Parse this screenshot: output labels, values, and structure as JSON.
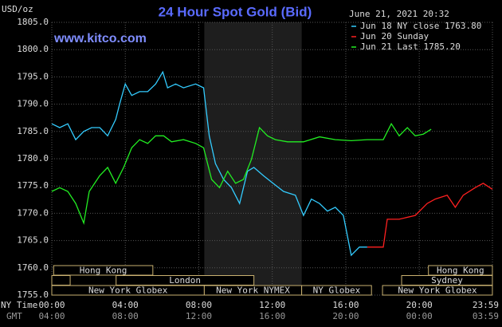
{
  "chart_data": {
    "type": "line",
    "title": "24 Hour Spot Gold (Bid)",
    "subtitle": "www.kitco.com",
    "timestamp": "June 21, 2021 20:32",
    "ylabel": "USD/oz",
    "xlabel": "NY Time",
    "x2label": "GMT",
    "xlim": [
      0,
      23.983
    ],
    "ylim": [
      1755,
      1805
    ],
    "yticks": [
      {
        "value": 1755,
        "label": "1755.0"
      },
      {
        "value": 1760,
        "label": "1760.0"
      },
      {
        "value": 1765,
        "label": "1765.0"
      },
      {
        "value": 1770,
        "label": "1770.0"
      },
      {
        "value": 1775,
        "label": "1775.0"
      },
      {
        "value": 1780,
        "label": "1780.0"
      },
      {
        "value": 1785,
        "label": "1785.0"
      },
      {
        "value": 1790,
        "label": "1790.0"
      },
      {
        "value": 1795,
        "label": "1795.0"
      },
      {
        "value": 1800,
        "label": "1800.0"
      },
      {
        "value": 1805,
        "label": "1805.0"
      }
    ],
    "xticks": [
      {
        "value": 0,
        "label": "00:00"
      },
      {
        "value": 4,
        "label": "04:00"
      },
      {
        "value": 8,
        "label": "08:00"
      },
      {
        "value": 12,
        "label": "12:00"
      },
      {
        "value": 16,
        "label": "16:00"
      },
      {
        "value": 20,
        "label": "20:00"
      },
      {
        "value": 23.983,
        "label": "23:59"
      }
    ],
    "x2ticks": [
      {
        "value": 0,
        "label": "04:00"
      },
      {
        "value": 4,
        "label": "08:00"
      },
      {
        "value": 8,
        "label": "12:00"
      },
      {
        "value": 12,
        "label": "16:00"
      },
      {
        "value": 16,
        "label": "20:00"
      },
      {
        "value": 20,
        "label": "00:00"
      },
      {
        "value": 23.983,
        "label": "03:59"
      }
    ],
    "grid": true,
    "sessions": [
      "Hong Kong",
      "London",
      "New York Globex",
      "New York NYMEX",
      "NY Globex",
      "Hong Kong",
      "Sydney",
      "New York Globex"
    ],
    "series": [
      {
        "name": "Jun 18 NY close 1763.80",
        "color": "#33ccff",
        "x": [
          0,
          0.43,
          0.87,
          1.3,
          1.74,
          2.17,
          2.61,
          3.04,
          3.48,
          3.7,
          4,
          4.35,
          4.78,
          5.22,
          5.65,
          6.04,
          6.3,
          6.74,
          7.17,
          7.83,
          8.26,
          8.57,
          8.91,
          9.35,
          9.78,
          10.22,
          10.65,
          11,
          11.52,
          12.04,
          12.61,
          13.26,
          13.7,
          14.13,
          14.57,
          15,
          15.43,
          15.87,
          16.3,
          16.74,
          17.17
        ],
        "values": [
          1786.4,
          1785.7,
          1786.4,
          1783.5,
          1785,
          1785.7,
          1785.7,
          1784.2,
          1787.2,
          1790.1,
          1793.7,
          1791.6,
          1792.3,
          1792.3,
          1793.7,
          1795.9,
          1793,
          1793.7,
          1793,
          1793.7,
          1793,
          1784.2,
          1779.1,
          1776.2,
          1774.7,
          1771.8,
          1777.7,
          1778.4,
          1776.9,
          1775.5,
          1774,
          1773.3,
          1769.6,
          1772.6,
          1771.8,
          1770.4,
          1771.1,
          1769.6,
          1762.3,
          1763.8,
          1763.8
        ]
      },
      {
        "name": "Jun 20 Sunday",
        "color": "#ff2020",
        "x": [
          17.17,
          18.04,
          18.26,
          18.91,
          19.78,
          20.43,
          20.87,
          21.52,
          21.96,
          22.39,
          23.04,
          23.48,
          23.98
        ],
        "values": [
          1763.8,
          1763.8,
          1768.9,
          1768.9,
          1769.6,
          1771.8,
          1772.6,
          1773.3,
          1771.1,
          1773.3,
          1774.7,
          1775.5,
          1774.4
        ]
      },
      {
        "name": "Jun 21 Last 1785.20",
        "color": "#22ee22",
        "x": [
          0,
          0.43,
          0.87,
          1.3,
          1.74,
          2.04,
          2.61,
          3.04,
          3.48,
          3.91,
          4.35,
          4.78,
          5.22,
          5.65,
          6.09,
          6.52,
          7.17,
          7.83,
          8.26,
          8.7,
          9.13,
          9.57,
          10,
          10.43,
          10.87,
          11.3,
          11.74,
          12.17,
          12.83,
          13.7,
          14.57,
          15.43,
          16.3,
          17.17,
          18.04,
          18.48,
          18.91,
          19.35,
          19.78,
          20.22,
          20.65
        ],
        "values": [
          1774,
          1774.7,
          1774,
          1771.8,
          1768.2,
          1774,
          1776.9,
          1778.4,
          1775.5,
          1778.4,
          1782,
          1783.5,
          1782.8,
          1784.2,
          1784.2,
          1783.1,
          1783.5,
          1782.8,
          1782,
          1776.2,
          1774.7,
          1777.7,
          1775.5,
          1776.2,
          1779.9,
          1785.7,
          1784.2,
          1783.5,
          1783.1,
          1783.1,
          1784,
          1783.5,
          1783.3,
          1783.5,
          1783.5,
          1786.4,
          1784.2,
          1785.7,
          1784.2,
          1784.5,
          1785.4
        ]
      }
    ]
  }
}
